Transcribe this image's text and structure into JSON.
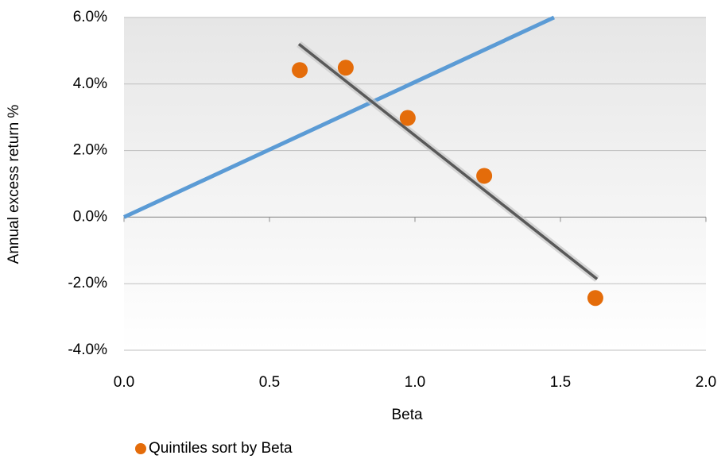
{
  "chart_data": {
    "type": "scatter",
    "x_label": "Beta",
    "y_label": "Annual excess return %",
    "xlim": [
      0,
      2
    ],
    "ylim": [
      -4,
      6
    ],
    "xticks": [
      {
        "value": 0,
        "label": "0.0"
      },
      {
        "value": 0.5,
        "label": "0.5"
      },
      {
        "value": 1,
        "label": "1.0"
      },
      {
        "value": 1.5,
        "label": "1.5"
      },
      {
        "value": 2,
        "label": "2.0"
      }
    ],
    "yticks": [
      {
        "value": -4,
        "label": "-4.0%"
      },
      {
        "value": -2,
        "label": "-2.0%"
      },
      {
        "value": 0,
        "label": "0.0%"
      },
      {
        "value": 2,
        "label": "2.0%"
      },
      {
        "value": 4,
        "label": "4.0%"
      },
      {
        "value": 6,
        "label": "6.0%"
      }
    ],
    "grid": true,
    "legend": "bottom-left",
    "series": [
      {
        "name": "Quintiles sort by Beta",
        "color": "#e46c0a",
        "x": [
          0.604,
          0.762,
          0.975,
          1.238,
          1.62
        ],
        "values": [
          4.42,
          4.49,
          2.98,
          1.24,
          -2.43
        ]
      }
    ],
    "lines": [
      {
        "color": "#5b9bd5",
        "x": [
          0,
          1.478
        ],
        "values": [
          0,
          6
        ]
      },
      {
        "color": "#595959",
        "x": [
          0.601,
          1.626
        ],
        "values": [
          5.2,
          -1.86
        ]
      }
    ]
  }
}
